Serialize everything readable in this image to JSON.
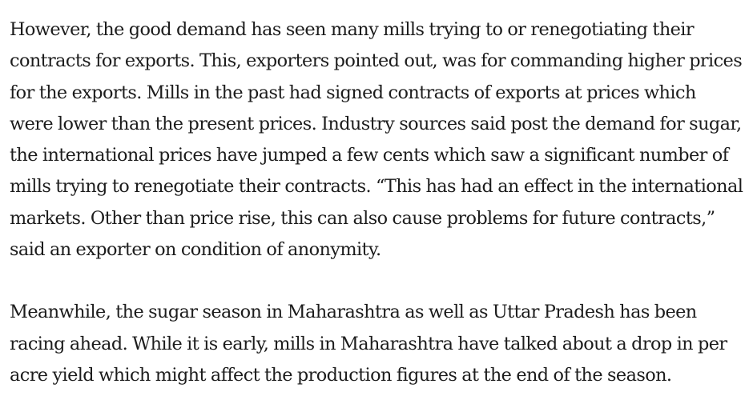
{
  "article": {
    "paragraphs": [
      "However, the good demand has seen many mills trying to or renegotiating their contracts for exports. This, exporters pointed out, was for commanding higher prices for the exports. Mills in the past had signed contracts of exports at prices which were lower than the present prices. Industry sources said post the demand for sugar, the international prices have jumped a few cents which saw a significant number of mills trying to renegotiate their contracts. “This has had an effect in the international markets. Other than price rise, this can also cause problems for future contracts,” said an exporter on condition of anonymity.",
      "Meanwhile, the sugar season in Maharashtra as well as Uttar Pradesh has been racing ahead. While it is early, mills in Maharashtra have talked about a drop in per acre yield which might affect the production figures at the end of the season."
    ]
  }
}
